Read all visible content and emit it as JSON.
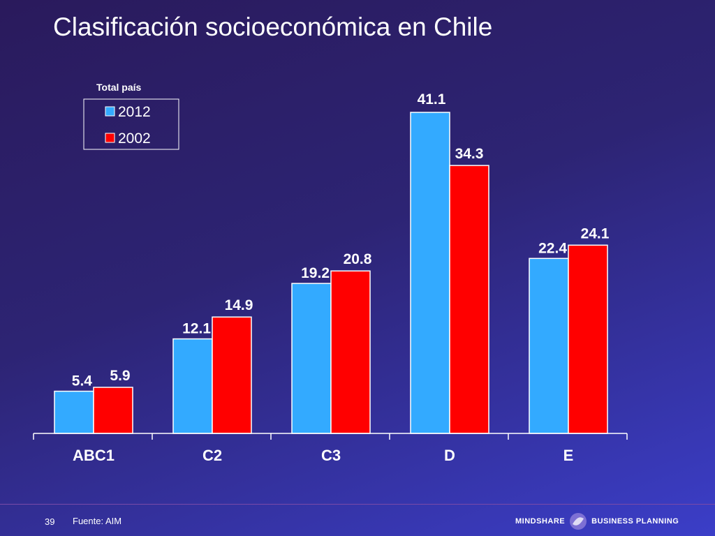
{
  "slide": {
    "title": "Clasificación socioeconómica en Chile",
    "page_number": "39",
    "source": "Fuente: AIM",
    "brand_left": "MINDSHARE",
    "brand_right": "BUSINESS PLANNING"
  },
  "colors": {
    "series_2012": "#33aaff",
    "series_2002": "#ff0000",
    "text": "#ffffff"
  },
  "chart_data": {
    "type": "bar",
    "title": "",
    "xlabel": "",
    "ylabel": "",
    "legend_title": "Total país",
    "legend_position": "top-left",
    "grid": false,
    "categories": [
      "ABC1",
      "C2",
      "C3",
      "D",
      "E"
    ],
    "series": [
      {
        "name": "2012",
        "values": [
          5.4,
          12.1,
          19.2,
          41.1,
          22.4
        ]
      },
      {
        "name": "2002",
        "values": [
          5.9,
          14.9,
          20.8,
          34.3,
          24.1
        ]
      }
    ],
    "value_labels": [
      [
        "5.4",
        "12.1",
        "19.2",
        "41.1",
        "22.4"
      ],
      [
        "5.9",
        "14.9",
        "20.8",
        "34.3",
        "24.1"
      ]
    ],
    "ylim": [
      0,
      45
    ]
  }
}
